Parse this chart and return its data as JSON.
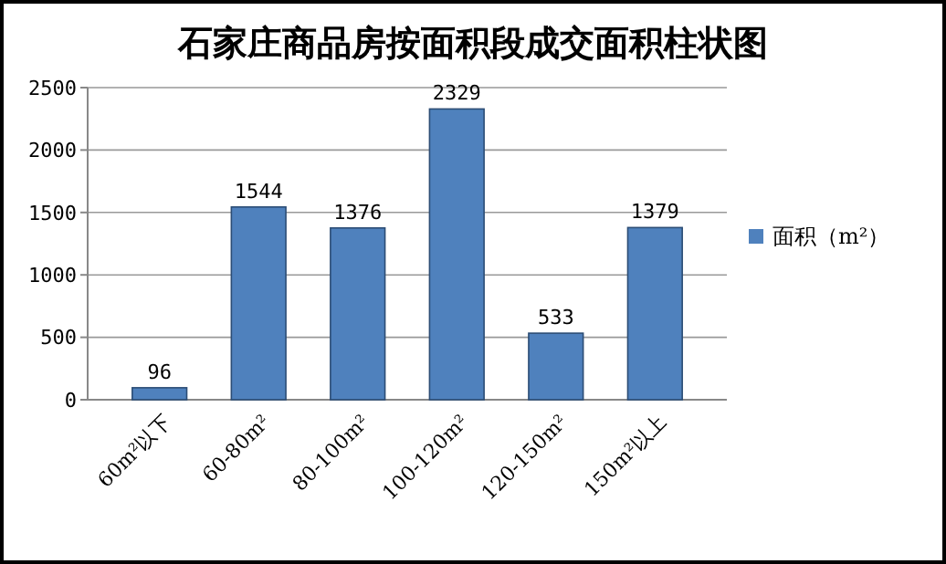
{
  "chart_data": {
    "type": "bar",
    "title": "石家庄商品房按面积段成交面积柱状图",
    "categories": [
      "60m²以下",
      "60-80m²",
      "80-100m²",
      "100-120m²",
      "120-150m²",
      "150m²以上"
    ],
    "series": [
      {
        "name": "面积（m²）",
        "color": "#4f81bd",
        "values": [
          96,
          1544,
          1376,
          2329,
          533,
          1379
        ]
      }
    ],
    "ylim": [
      0,
      2500
    ],
    "yticks": [
      0,
      500,
      1000,
      1500,
      2000,
      2500
    ],
    "grid": "y",
    "legend": "right",
    "data_labels": true
  }
}
